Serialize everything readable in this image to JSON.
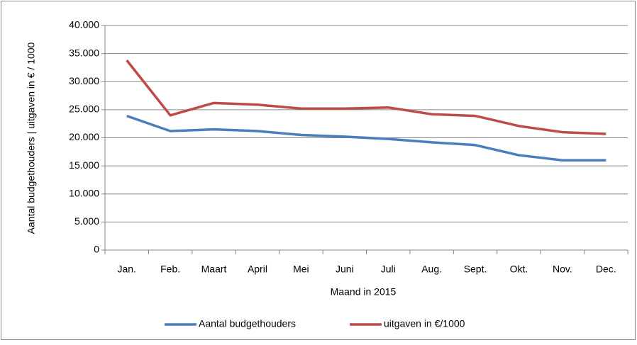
{
  "chart_data": {
    "type": "line",
    "x_label": "Maand in 2015",
    "y_label": "Aantal budgethouders  | uitgaven in € / 1000",
    "categories": [
      "Jan.",
      "Feb.",
      "Maart",
      "April",
      "Mei",
      "Juni",
      "Juli",
      "Aug.",
      "Sept.",
      "Okt.",
      "Nov.",
      "Dec."
    ],
    "series": [
      {
        "name": "Aantal budgethouders",
        "color": "#4a7ebb",
        "values": [
          23900,
          21200,
          21500,
          21200,
          20500,
          20200,
          19800,
          19200,
          18700,
          16900,
          16000,
          16000
        ]
      },
      {
        "name": "uitgaven in €/1000",
        "color": "#be4b48",
        "values": [
          33800,
          24000,
          26200,
          25900,
          25200,
          25200,
          25400,
          24200,
          23900,
          22100,
          21000,
          20700
        ]
      }
    ],
    "ylim": [
      0,
      40000
    ],
    "yticks": [
      0,
      {
        "value": 5000,
        "label": "5.000"
      },
      {
        "value": 10000,
        "label": "10.000"
      },
      {
        "value": 15000,
        "label": "15.000"
      },
      {
        "value": 20000,
        "label": "20.000"
      },
      {
        "value": 25000,
        "label": "25.000"
      },
      {
        "value": 30000,
        "label": "30.000"
      },
      {
        "value": 35000,
        "label": "35.000"
      },
      {
        "value": 40000,
        "label": "40.000"
      }
    ],
    "grid": true,
    "legend": "bottom"
  }
}
